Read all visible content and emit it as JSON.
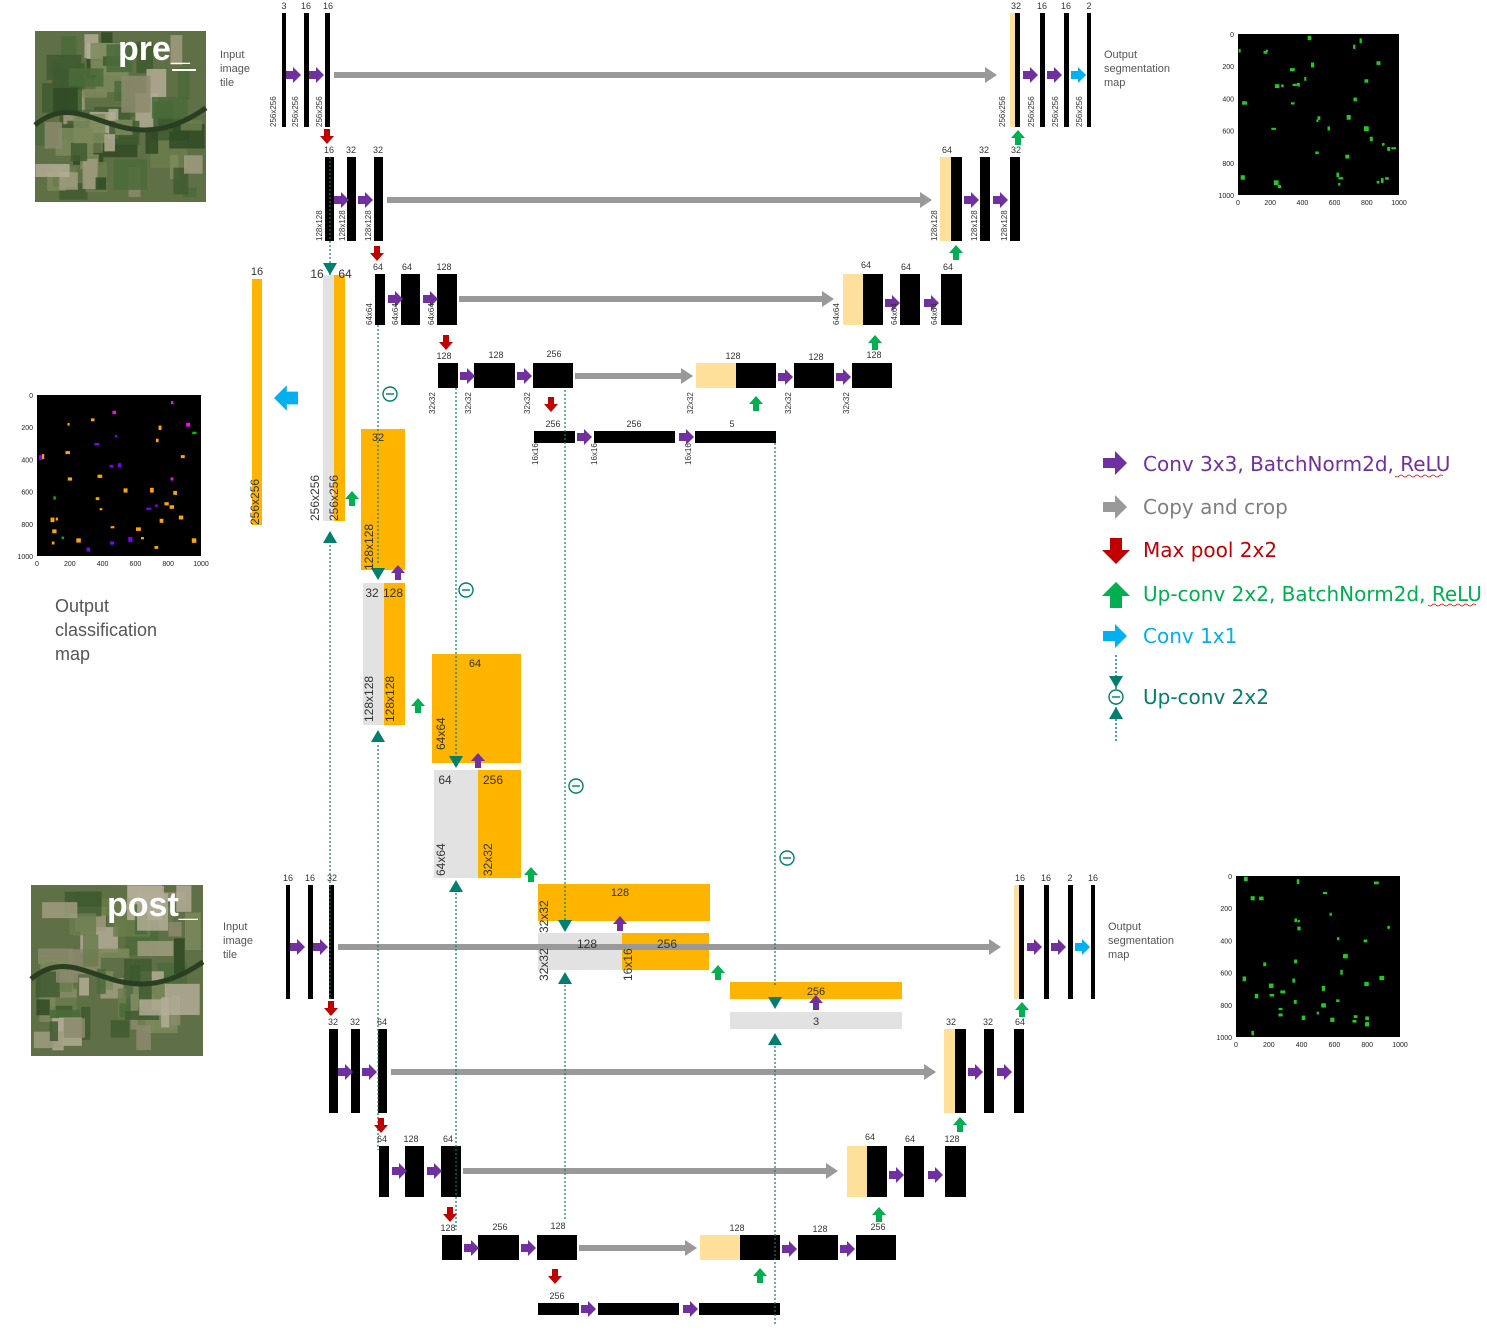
{
  "thumbnails": {
    "pre_label": "pre_",
    "post_label": "post_"
  },
  "side_labels": {
    "input_tile": "Input\nimage\ntile",
    "output_seg": "Output\nsegmentation\nmap",
    "output_cls": "Output\nclassification\nmap"
  },
  "legend": [
    {
      "name": "conv-3x3",
      "text": "Conv 3x3, BatchNorm2d, ReLU",
      "color": "#7030A0"
    },
    {
      "name": "copy-crop",
      "text": "Copy and crop",
      "color": "#7f7f7f"
    },
    {
      "name": "max-pool",
      "text": "Max pool 2x2",
      "color": "#C00000"
    },
    {
      "name": "up-conv-bn",
      "text": "Up-conv 2x2, BatchNorm2d, ReLU",
      "color": "#00B050"
    },
    {
      "name": "conv-1x1",
      "text": "Conv 1x1",
      "color": "#00B0F0"
    },
    {
      "name": "up-conv",
      "text": "Up-conv 2x2",
      "color": "#007E6E"
    }
  ],
  "heatmap_ticks": {
    "y": [
      "0",
      "200",
      "400",
      "600",
      "800",
      "1000"
    ],
    "x": [
      "0",
      "200",
      "400",
      "600",
      "800",
      "1000"
    ]
  },
  "labels": [
    "3",
    "16",
    "16",
    "32",
    "16",
    "16",
    "2",
    "16",
    "32",
    "32",
    "64",
    "32",
    "32",
    "64",
    "64",
    "128",
    "64",
    "64",
    "64",
    "128",
    "128",
    "256",
    "128",
    "128",
    "128",
    "256",
    "256",
    "5",
    "16",
    "16",
    "64",
    "32",
    "32",
    "128",
    "64",
    "64",
    "256",
    "128",
    "128",
    "256",
    "256",
    "3",
    "16",
    "16",
    "32",
    "16",
    "16",
    "2",
    "16",
    "32",
    "32",
    "64",
    "32",
    "32",
    "64",
    "64",
    "128",
    "64",
    "64",
    "64",
    "128",
    "128",
    "256",
    "128",
    "128",
    "128",
    "256",
    "256"
  ],
  "dims": [
    "256x256",
    "256x256",
    "256x256",
    "256x256",
    "256x256",
    "256x256",
    "256x256",
    "128x128",
    "128x128",
    "128x128",
    "128x128",
    "128x128",
    "128x128",
    "64x64",
    "64x64",
    "64x64",
    "64x64",
    "64x64",
    "64x64",
    "32x32",
    "32x32",
    "32x32",
    "32x32",
    "32x32",
    "32x32",
    "16x16",
    "16x16",
    "16x16",
    "256x256",
    "256x256",
    "256x256",
    "128x128",
    "128x128",
    "128x128",
    "64x64",
    "64x64",
    "32x32",
    "32x32",
    "32x32",
    "16x16"
  ],
  "colors": {
    "feature": "#FFB400",
    "feature_light": "#FFE09A",
    "fusion_gray": "#E2E2E2",
    "copy_arrow": "#999999"
  }
}
